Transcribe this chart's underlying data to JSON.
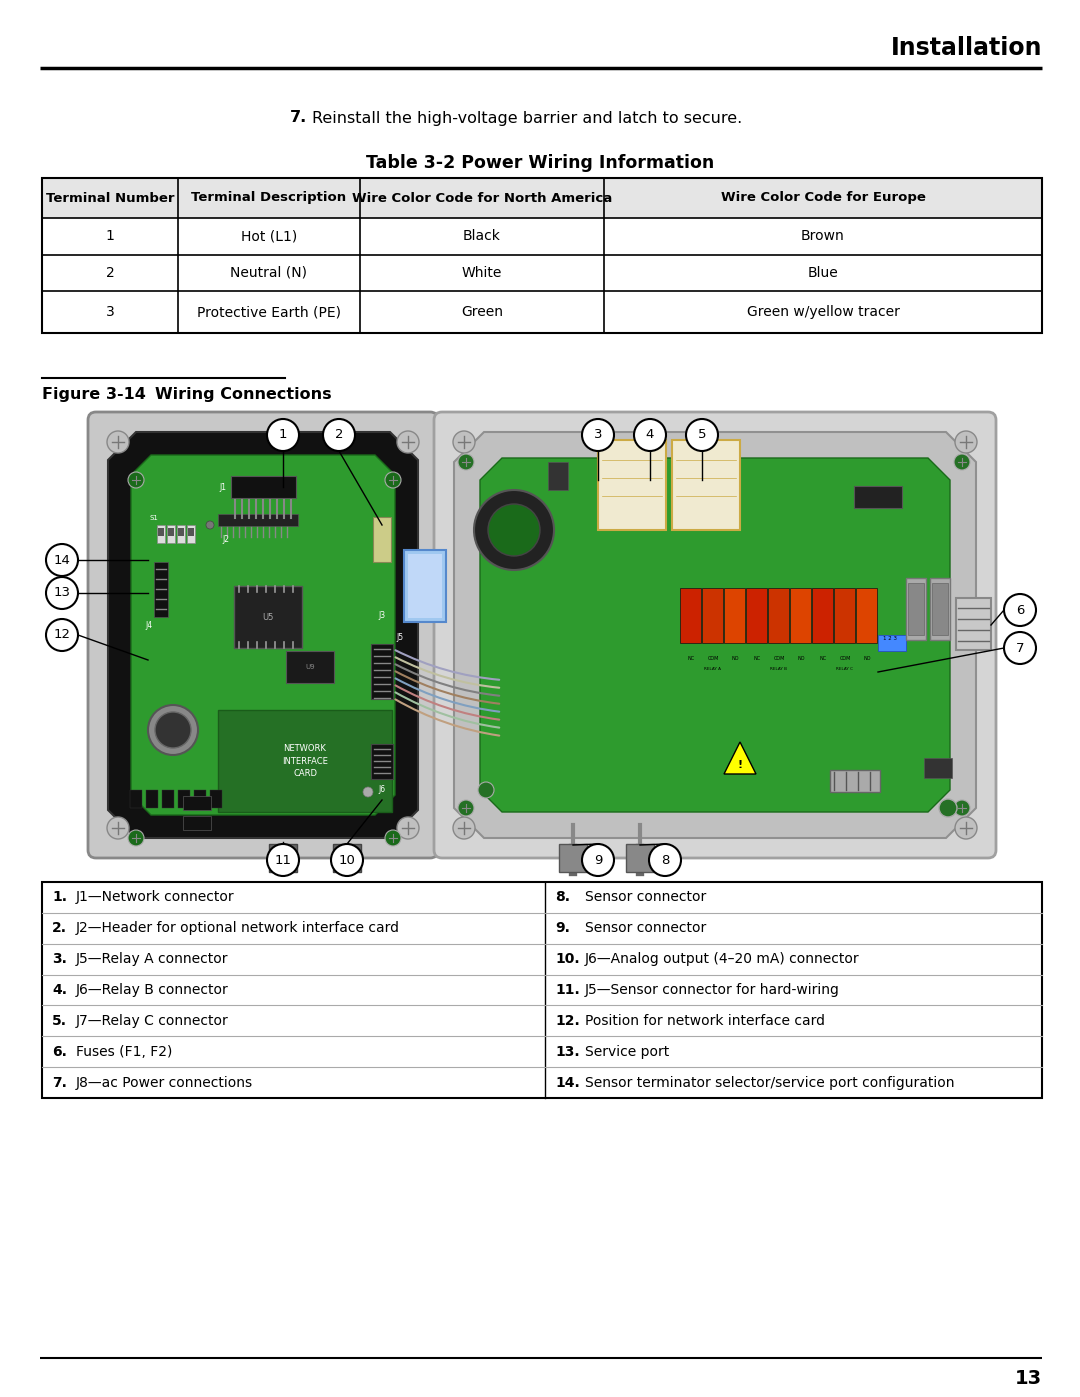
{
  "page_title": "Installation",
  "page_number": "13",
  "step7_num": "7.",
  "step7_text": "Reinstall the high-voltage barrier and latch to secure.",
  "table_title": "Table 3-2 Power Wiring Information",
  "table_headers": [
    "Terminal Number",
    "Terminal Description",
    "Wire Color Code for North America",
    "Wire Color Code for Europe"
  ],
  "table_rows": [
    [
      "1",
      "Hot (L1)",
      "Black",
      "Brown"
    ],
    [
      "2",
      "Neutral (N)",
      "White",
      "Blue"
    ],
    [
      "3",
      "Protective Earth (PE)",
      "Green",
      "Green w/yellow tracer"
    ]
  ],
  "figure_label": "Figure 3-14",
  "figure_title": "Wiring Connections",
  "legend_left": [
    [
      "1.",
      "J1—Network connector"
    ],
    [
      "2.",
      "J2—Header for optional network interface card"
    ],
    [
      "3.",
      "J5—Relay A connector"
    ],
    [
      "4.",
      "J6—Relay B connector"
    ],
    [
      "5.",
      "J7—Relay C connector"
    ],
    [
      "6.",
      "Fuses (F1, F2)"
    ],
    [
      "7.",
      "J8—ac Power connections"
    ]
  ],
  "legend_right": [
    [
      "8.",
      "Sensor connector"
    ],
    [
      "9.",
      "Sensor connector"
    ],
    [
      "10.",
      "J6—Analog output (4–20 mA) connector"
    ],
    [
      "11.",
      "J5—Sensor connector for hard-wiring"
    ],
    [
      "12.",
      "Position for network interface card"
    ],
    [
      "13.",
      "Service port"
    ],
    [
      "14.",
      "Sensor terminator selector/service port configuration"
    ]
  ],
  "bg_color": "#ffffff",
  "text_color": "#000000",
  "enclosure_dark": "#1a1a1a",
  "enclosure_gray": "#404040",
  "pcb_green": "#3a9a3a",
  "pcb_dark_green": "#1a6a1a",
  "inner_black": "#0d0d0d",
  "screw_gray": "#b0b0b0",
  "right_enclosure_light": "#d0d0d0",
  "right_enclosure_mid": "#a8a8a8"
}
